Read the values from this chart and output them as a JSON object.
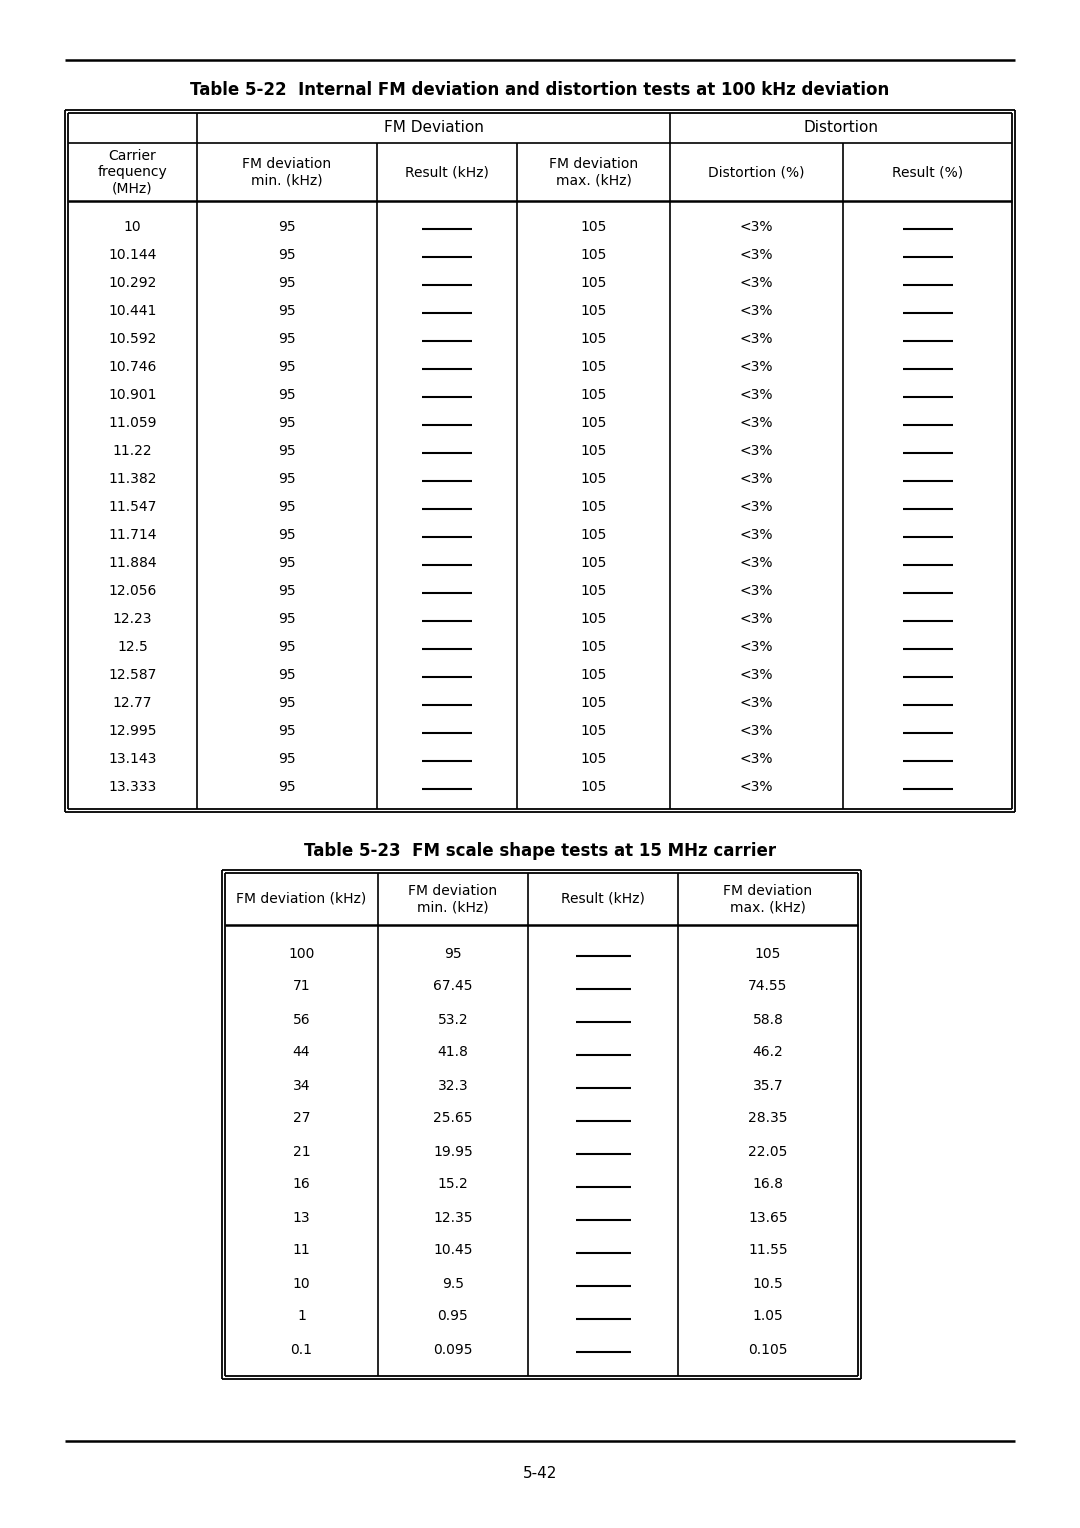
{
  "title1": "Table 5-22  Internal FM deviation and distortion tests at 100 kHz deviation",
  "title2": "Table 5-23  FM scale shape tests at 15 MHz carrier",
  "page_number": "5-42",
  "table1_data": [
    [
      "10",
      "95",
      "",
      "105",
      "<3%",
      ""
    ],
    [
      "10.144",
      "95",
      "",
      "105",
      "<3%",
      ""
    ],
    [
      "10.292",
      "95",
      "",
      "105",
      "<3%",
      ""
    ],
    [
      "10.441",
      "95",
      "",
      "105",
      "<3%",
      ""
    ],
    [
      "10.592",
      "95",
      "",
      "105",
      "<3%",
      ""
    ],
    [
      "10.746",
      "95",
      "",
      "105",
      "<3%",
      ""
    ],
    [
      "10.901",
      "95",
      "",
      "105",
      "<3%",
      ""
    ],
    [
      "11.059",
      "95",
      "",
      "105",
      "<3%",
      ""
    ],
    [
      "11.22",
      "95",
      "",
      "105",
      "<3%",
      ""
    ],
    [
      "11.382",
      "95",
      "",
      "105",
      "<3%",
      ""
    ],
    [
      "11.547",
      "95",
      "",
      "105",
      "<3%",
      ""
    ],
    [
      "11.714",
      "95",
      "",
      "105",
      "<3%",
      ""
    ],
    [
      "11.884",
      "95",
      "",
      "105",
      "<3%",
      ""
    ],
    [
      "12.056",
      "95",
      "",
      "105",
      "<3%",
      ""
    ],
    [
      "12.23",
      "95",
      "",
      "105",
      "<3%",
      ""
    ],
    [
      "12.5",
      "95",
      "",
      "105",
      "<3%",
      ""
    ],
    [
      "12.587",
      "95",
      "",
      "105",
      "<3%",
      ""
    ],
    [
      "12.77",
      "95",
      "",
      "105",
      "<3%",
      ""
    ],
    [
      "12.995",
      "95",
      "",
      "105",
      "<3%",
      ""
    ],
    [
      "13.143",
      "95",
      "",
      "105",
      "<3%",
      ""
    ],
    [
      "13.333",
      "95",
      "",
      "105",
      "<3%",
      ""
    ]
  ],
  "table2_data": [
    [
      "100",
      "95",
      "",
      "105"
    ],
    [
      "71",
      "67.45",
      "",
      "74.55"
    ],
    [
      "56",
      "53.2",
      "",
      "58.8"
    ],
    [
      "44",
      "41.8",
      "",
      "46.2"
    ],
    [
      "34",
      "32.3",
      "",
      "35.7"
    ],
    [
      "27",
      "25.65",
      "",
      "28.35"
    ],
    [
      "21",
      "19.95",
      "",
      "22.05"
    ],
    [
      "16",
      "15.2",
      "",
      "16.8"
    ],
    [
      "13",
      "12.35",
      "",
      "13.65"
    ],
    [
      "11",
      "10.45",
      "",
      "11.55"
    ],
    [
      "10",
      "9.5",
      "",
      "10.5"
    ],
    [
      "1",
      "0.95",
      "",
      "1.05"
    ],
    [
      "0.1",
      "0.095",
      "",
      "0.105"
    ]
  ],
  "bg_color": "#ffffff"
}
